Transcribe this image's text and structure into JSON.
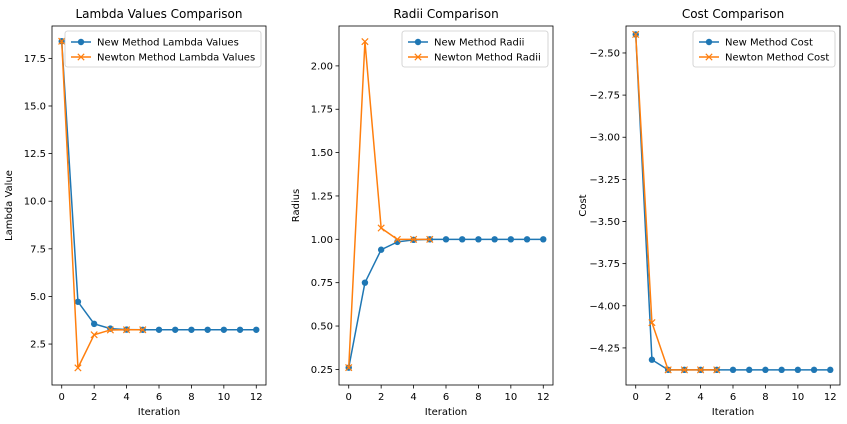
{
  "chart_data": [
    {
      "type": "line",
      "title": "Lambda Values Comparison",
      "xlabel": "Iteration",
      "ylabel": "Lambda Value",
      "xlim": [
        -0.6,
        12.6
      ],
      "ylim": [
        0.35,
        19.2
      ],
      "xticks": [
        0,
        2,
        4,
        6,
        8,
        10,
        12
      ],
      "yticks": [
        2.5,
        5.0,
        7.5,
        10.0,
        12.5,
        15.0,
        17.5
      ],
      "ytick_labels": [
        "2.5",
        "5.0",
        "7.5",
        "10.0",
        "12.5",
        "15.0",
        "17.5"
      ],
      "grid": false,
      "legend": "top-right",
      "series": [
        {
          "name": "New Method Lambda Values",
          "color": "#1f77b4",
          "marker": "circle",
          "x": [
            0,
            1,
            2,
            3,
            4,
            5,
            6,
            7,
            8,
            9,
            10,
            11,
            12
          ],
          "y": [
            18.4,
            4.72,
            3.56,
            3.31,
            3.26,
            3.25,
            3.25,
            3.25,
            3.25,
            3.25,
            3.25,
            3.25,
            3.25
          ]
        },
        {
          "name": "Newton Method Lambda Values",
          "color": "#ff7f0e",
          "marker": "x",
          "x": [
            0,
            1,
            2,
            3,
            4,
            5
          ],
          "y": [
            18.4,
            1.25,
            2.99,
            3.24,
            3.25,
            3.25
          ]
        }
      ]
    },
    {
      "type": "line",
      "title": "Radii Comparison",
      "xlabel": "Iteration",
      "ylabel": "Radius",
      "xlim": [
        -0.6,
        12.6
      ],
      "ylim": [
        0.16,
        2.23
      ],
      "xticks": [
        0,
        2,
        4,
        6,
        8,
        10,
        12
      ],
      "yticks": [
        0.25,
        0.5,
        0.75,
        1.0,
        1.25,
        1.5,
        1.75,
        2.0
      ],
      "ytick_labels": [
        "0.25",
        "0.50",
        "0.75",
        "1.00",
        "1.25",
        "1.50",
        "1.75",
        "2.00"
      ],
      "grid": false,
      "legend": "top-right",
      "series": [
        {
          "name": "New Method Radii",
          "color": "#1f77b4",
          "marker": "circle",
          "x": [
            0,
            1,
            2,
            3,
            4,
            5,
            6,
            7,
            8,
            9,
            10,
            11,
            12
          ],
          "y": [
            0.26,
            0.75,
            0.94,
            0.985,
            0.997,
            1.0,
            1.0,
            1.0,
            1.0,
            1.0,
            1.0,
            1.0,
            1.0
          ]
        },
        {
          "name": "Newton Method Radii",
          "color": "#ff7f0e",
          "marker": "x",
          "x": [
            0,
            1,
            2,
            3,
            4,
            5
          ],
          "y": [
            0.26,
            2.14,
            1.065,
            1.0,
            1.0,
            1.0
          ]
        }
      ]
    },
    {
      "type": "line",
      "title": "Cost Comparison",
      "xlabel": "Iteration",
      "ylabel": "Cost",
      "xlim": [
        -0.6,
        12.6
      ],
      "ylim": [
        -4.47,
        -2.34
      ],
      "xticks": [
        0,
        2,
        4,
        6,
        8,
        10,
        12
      ],
      "yticks": [
        -4.25,
        -4.0,
        -3.75,
        -3.5,
        -3.25,
        -3.0,
        -2.75,
        -2.5
      ],
      "ytick_labels": [
        "−4.25",
        "−4.00",
        "−3.75",
        "−3.50",
        "−3.25",
        "−3.00",
        "−2.75",
        "−2.50"
      ],
      "grid": false,
      "legend": "top-right",
      "series": [
        {
          "name": "New Method Cost",
          "color": "#1f77b4",
          "marker": "circle",
          "x": [
            0,
            1,
            2,
            3,
            4,
            5,
            6,
            7,
            8,
            9,
            10,
            11,
            12
          ],
          "y": [
            -2.39,
            -4.32,
            -4.38,
            -4.38,
            -4.38,
            -4.38,
            -4.38,
            -4.38,
            -4.38,
            -4.38,
            -4.38,
            -4.38,
            -4.38
          ]
        },
        {
          "name": "Newton Method Cost",
          "color": "#ff7f0e",
          "marker": "x",
          "x": [
            0,
            1,
            2,
            3,
            4,
            5
          ],
          "y": [
            -2.39,
            -4.1,
            -4.38,
            -4.38,
            -4.38,
            -4.38
          ]
        }
      ]
    }
  ]
}
